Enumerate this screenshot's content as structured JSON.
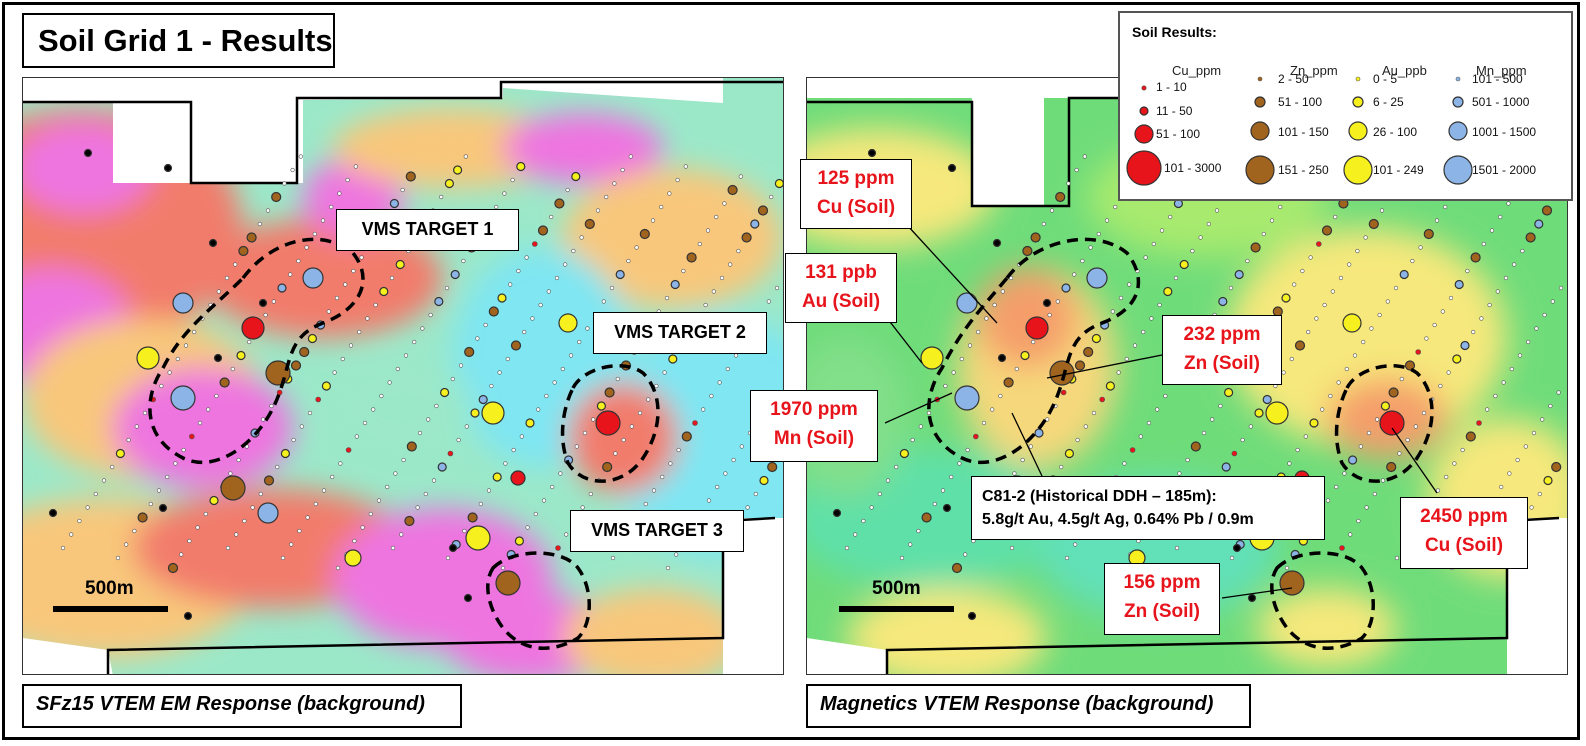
{
  "title": "Soil Grid 1 - Results",
  "captions": {
    "left": "SFz15 VTEM EM Response (background)",
    "right": "Magnetics VTEM Response (background)"
  },
  "scale_label": "500m",
  "targets": {
    "t1": "VMS TARGET 1",
    "t2": "VMS TARGET 2",
    "t3": "VMS TARGET 3"
  },
  "annotations": {
    "cu125": [
      "125 ppm",
      "Cu (Soil)"
    ],
    "au131": [
      "131 ppb",
      "Au (Soil)"
    ],
    "zn232": [
      "232 ppm",
      "Zn (Soil)"
    ],
    "mn1970": [
      "1970 ppm",
      "Mn (Soil)"
    ],
    "ddh": [
      "C81-2 (Historical DDH – 185m):",
      "5.8g/t Au, 4.5g/t Ag, 0.64% Pb / 0.9m"
    ],
    "cu2450": [
      "2450 ppm",
      "Cu (Soil)"
    ],
    "zn156": [
      "156 ppm",
      "Zn (Soil)"
    ]
  },
  "legend": {
    "title": "Soil Results:",
    "columns": [
      {
        "header": "Cu_ppm",
        "color": "#e8141c",
        "items": [
          "1 - 10",
          "11 - 50",
          "51 - 100",
          "101 - 3000"
        ]
      },
      {
        "header": "Zn_ppm",
        "color": "#a0641e",
        "items": [
          "2 - 50",
          "51 - 100",
          "101 - 150",
          "151 - 250"
        ]
      },
      {
        "header": "Au_ppb",
        "color": "#f5f01e",
        "items": [
          "0 - 5",
          "6 - 25",
          "26 - 100",
          "101 - 249"
        ]
      },
      {
        "header": "Mn_ppm",
        "color": "#8cb4e6",
        "items": [
          "101 - 500",
          "501 - 1000",
          "1001 - 1500",
          "1501 - 2000"
        ]
      }
    ]
  },
  "colors": {
    "cu": "#e8141c",
    "zn": "#a0641e",
    "au": "#f5f01e",
    "mn": "#8cb4e6",
    "annotation_text": "#e8141c"
  }
}
